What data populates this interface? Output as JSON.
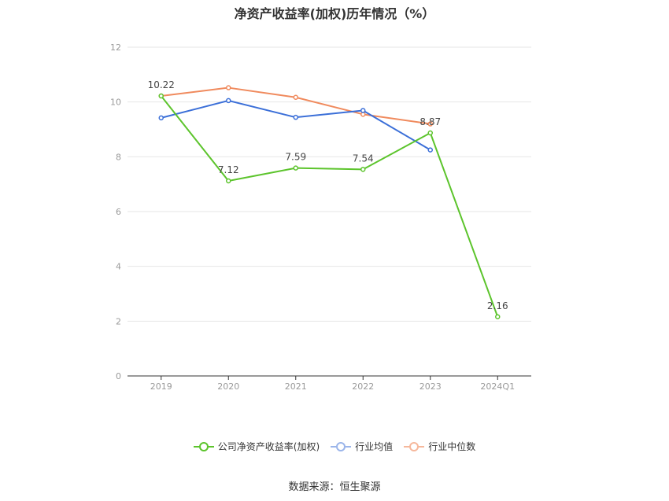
{
  "title": "净资产收益率(加权)历年情况（%）",
  "source": "数据来源：恒生聚源",
  "chart_data": {
    "type": "line",
    "categories": [
      "2019",
      "2020",
      "2021",
      "2022",
      "2023",
      "2024Q1"
    ],
    "ylim": [
      0,
      12
    ],
    "yticks": [
      0,
      2,
      4,
      6,
      8,
      10,
      12
    ],
    "grid": true,
    "legend_position": "bottom",
    "series": [
      {
        "name": "公司净资产收益率(加权)",
        "color": "#5cc42c",
        "values": [
          10.22,
          7.12,
          7.59,
          7.54,
          8.87,
          2.16
        ],
        "labels": [
          "10.22",
          "7.12",
          "7.59",
          "7.54",
          "8.87",
          "2.16"
        ]
      },
      {
        "name": "行业均值",
        "color": "#3b6fd8",
        "values": [
          9.42,
          10.05,
          9.44,
          9.69,
          8.25,
          null
        ]
      },
      {
        "name": "行业中位数",
        "color": "#f08a5d",
        "values": [
          10.22,
          10.52,
          10.17,
          9.55,
          9.2,
          null
        ]
      }
    ]
  }
}
